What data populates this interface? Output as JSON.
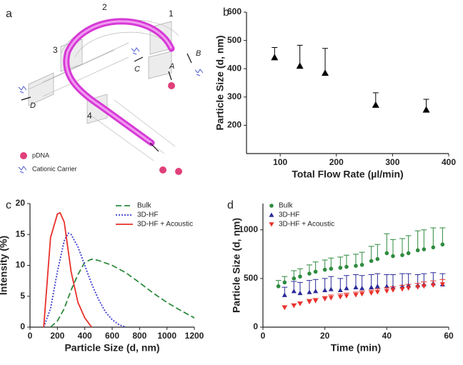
{
  "diagram": {
    "panel_label": "a",
    "labels": [
      "1",
      "2",
      "3",
      "4",
      "A",
      "B",
      "C",
      "D"
    ],
    "legend": [
      "pDNA",
      "Cationic Carrier"
    ]
  },
  "chart_data": [
    {
      "type": "scatter",
      "panel_label": "b",
      "x_label": "Total Flow Rate (µl/min)",
      "y_label": "Particle Size (d, nm)",
      "xlim": [
        40,
        400
      ],
      "xticks": [
        100,
        200,
        300,
        400
      ],
      "ylim": [
        100,
        600
      ],
      "yticks": [
        200,
        300,
        400,
        500,
        600
      ],
      "series": [
        {
          "color": "#000000",
          "marker": "triangle",
          "x": [
            90,
            135,
            180,
            270,
            360
          ],
          "values": [
            440,
            410,
            385,
            272,
            255
          ],
          "errors": [
            35,
            73,
            87,
            43,
            37
          ]
        }
      ]
    },
    {
      "type": "line",
      "panel_label": "c",
      "x_label": "Particle Size (d, nm)",
      "y_label": "Intensity (%)",
      "xlim": [
        0,
        1200
      ],
      "xticks": [
        0,
        200,
        400,
        600,
        800,
        1000,
        1200
      ],
      "ylim": [
        0,
        20
      ],
      "yticks": [
        0,
        5,
        10,
        15,
        20
      ],
      "legend": "upper right",
      "series": [
        {
          "name": "Bulk",
          "color": "#2e8b3e",
          "dash": "dashed",
          "x": [
            150,
            200,
            250,
            300,
            350,
            400,
            450,
            500,
            600,
            700,
            800,
            900,
            1000,
            1100,
            1200
          ],
          "values": [
            0,
            1,
            3,
            6,
            8.5,
            10.5,
            11,
            10.8,
            10,
            8.8,
            7.2,
            5.5,
            4,
            2.7,
            1.5
          ]
        },
        {
          "name": "3D-HF",
          "color": "#3a3ad0",
          "dash": "dotted",
          "x": [
            100,
            150,
            200,
            250,
            280,
            300,
            350,
            400,
            450,
            500,
            550,
            600,
            650,
            700
          ],
          "values": [
            0,
            3,
            9,
            14,
            15.2,
            15,
            13,
            10,
            7,
            4.5,
            2.5,
            1.2,
            0.4,
            0
          ]
        },
        {
          "name": "3D-HF + Acoustic",
          "color": "#e8302a",
          "dash": "solid",
          "x": [
            100,
            150,
            200,
            220,
            250,
            300,
            350,
            400,
            450
          ],
          "values": [
            0,
            14.5,
            18.3,
            18.5,
            17,
            9,
            4,
            1.5,
            0
          ]
        }
      ]
    },
    {
      "type": "scatter",
      "panel_label": "d",
      "x_label": "Time (min)",
      "y_label": "Particle Size (d, nm)",
      "xlim": [
        0,
        60
      ],
      "xticks": [
        0,
        20,
        40,
        60
      ],
      "ylim": [
        0,
        1270
      ],
      "yticks": [
        0,
        500,
        1000
      ],
      "legend": "upper left",
      "series": [
        {
          "name": "Bulk",
          "color": "#2e8b3e",
          "marker": "circle",
          "x": [
            5,
            7,
            10,
            12,
            15,
            17,
            20,
            22,
            25,
            27,
            30,
            32,
            35,
            37,
            40,
            42,
            45,
            47,
            50,
            52,
            55,
            58
          ],
          "values": [
            420,
            460,
            500,
            520,
            550,
            570,
            590,
            600,
            610,
            620,
            630,
            640,
            680,
            700,
            760,
            730,
            740,
            760,
            790,
            800,
            820,
            850
          ],
          "errors": [
            60,
            60,
            80,
            80,
            90,
            100,
            100,
            110,
            110,
            120,
            120,
            130,
            150,
            150,
            200,
            170,
            170,
            180,
            200,
            200,
            200,
            170
          ]
        },
        {
          "name": "3D-HF",
          "color": "#2a2a9a",
          "marker": "triangle",
          "x": [
            7,
            10,
            12,
            15,
            17,
            20,
            22,
            25,
            27,
            30,
            32,
            35,
            37,
            40,
            42,
            45,
            47,
            50,
            52,
            55,
            58
          ],
          "values": [
            330,
            370,
            350,
            360,
            370,
            380,
            390,
            380,
            400,
            410,
            400,
            410,
            420,
            420,
            410,
            420,
            430,
            430,
            440,
            450,
            440
          ],
          "errors": [
            80,
            100,
            110,
            120,
            120,
            120,
            130,
            120,
            130,
            130,
            130,
            130,
            130,
            120,
            130,
            130,
            120,
            110,
            110,
            110,
            110
          ]
        },
        {
          "name": "3D-HF + Acoustic",
          "color": "#e8302a",
          "marker": "triangle-down",
          "x": [
            7,
            10,
            12,
            15,
            17,
            20,
            22,
            25,
            27,
            30,
            32,
            35,
            37,
            40,
            42,
            45,
            47,
            50,
            52,
            55,
            58
          ],
          "values": [
            200,
            220,
            240,
            260,
            270,
            290,
            300,
            310,
            320,
            330,
            340,
            350,
            360,
            370,
            380,
            390,
            400,
            410,
            420,
            430,
            440
          ],
          "errors": [
            20,
            20,
            20,
            25,
            25,
            25,
            30,
            30,
            30,
            30,
            30,
            30,
            35,
            35,
            35,
            40,
            40,
            40,
            45,
            45,
            50
          ]
        }
      ]
    }
  ]
}
